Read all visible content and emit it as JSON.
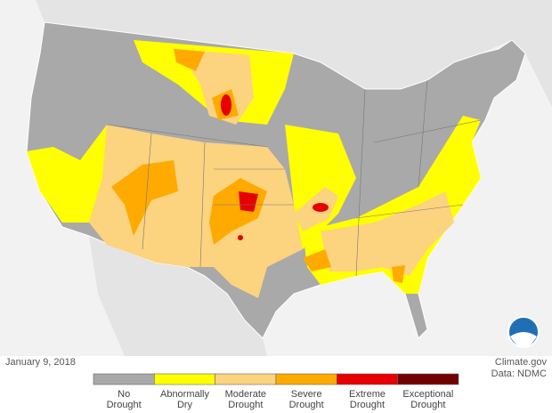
{
  "date": "January 9, 2018",
  "credit": "Climate.gov",
  "source": "Data: NDMC",
  "legend": [
    {
      "lines": [
        "No",
        "Drought"
      ],
      "color": "#a9a9a9"
    },
    {
      "lines": [
        "Abnormally",
        "Dry"
      ],
      "color": "#ffff00"
    },
    {
      "lines": [
        "Moderate",
        "Drought"
      ],
      "color": "#fcd37f"
    },
    {
      "lines": [
        "Severe",
        "Drought"
      ],
      "color": "#ffaa00"
    },
    {
      "lines": [
        "Extreme",
        "Drought"
      ],
      "color": "#e60000"
    },
    {
      "lines": [
        "Exceptional",
        "Drought"
      ],
      "color": "#730000"
    }
  ]
}
